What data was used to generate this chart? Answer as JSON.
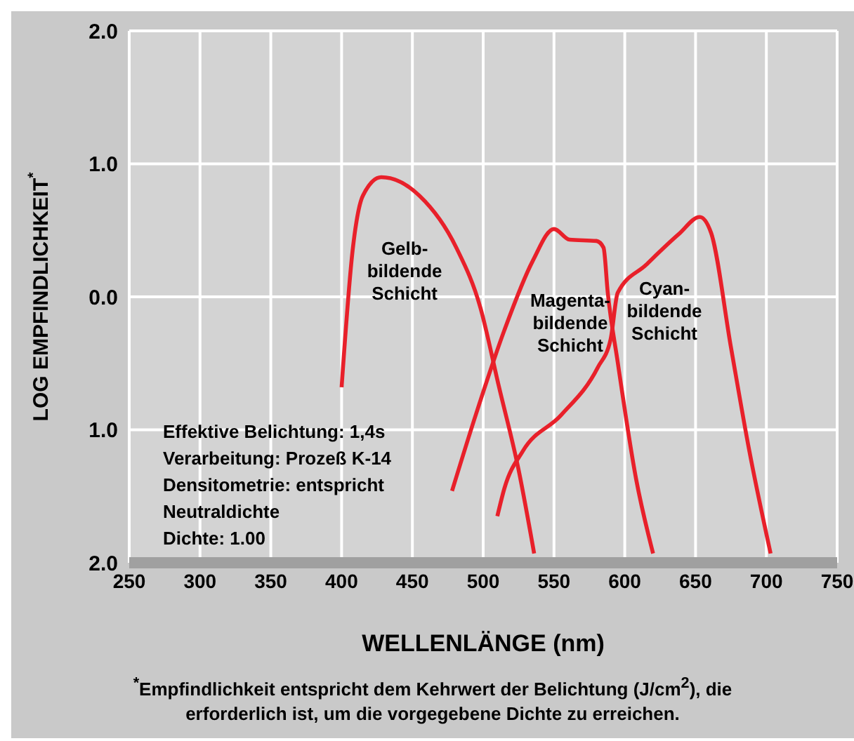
{
  "chart_data": {
    "type": "line",
    "xlabel": "WELLENLÄNGE (nm)",
    "ylabel": "LOG EMPFINDLICHKEIT$^{*}$",
    "xlim": [
      250,
      750
    ],
    "xticks": [
      250,
      300,
      350,
      400,
      450,
      500,
      550,
      600,
      650,
      700,
      750
    ],
    "ylim": [
      -2,
      2
    ],
    "yticks": [
      {
        "value": 2,
        "label": "2.0"
      },
      {
        "value": 1,
        "label": "1.0"
      },
      {
        "value": 0,
        "label": "0.0"
      },
      {
        "value": -1,
        "label": "1.0"
      },
      {
        "value": -2,
        "label": "2.0"
      }
    ],
    "grid": true,
    "marker": "none",
    "line_style": "solid",
    "series": [
      {
        "name": "Gelb- bildende Schicht",
        "color": "#e8202a",
        "x": [
          400,
          408,
          415,
          428,
          455,
          481,
          498,
          511,
          525,
          536
        ],
        "values": [
          -0.68,
          0.37,
          0.76,
          0.9,
          0.76,
          0.37,
          -0.08,
          -0.67,
          -1.3,
          -1.93
        ]
      },
      {
        "name": "Magenta- bildende Schicht",
        "color": "#e8202a",
        "x": [
          478,
          495,
          515,
          535,
          550,
          561,
          580,
          585,
          588,
          595,
          608,
          620
        ],
        "values": [
          -1.46,
          -0.88,
          -0.25,
          0.27,
          0.51,
          0.43,
          0.42,
          0.37,
          0.03,
          -0.49,
          -1.37,
          -1.93
        ]
      },
      {
        "name": "Cyan- bildende Schicht",
        "color": "#e8202a",
        "x": [
          510,
          515,
          528,
          555,
          581,
          590,
          595,
          615,
          638,
          653,
          661,
          675,
          688,
          703
        ],
        "values": [
          -1.65,
          -1.44,
          -1.16,
          -0.89,
          -0.53,
          -0.32,
          0.03,
          0.24,
          0.47,
          0.6,
          0.48,
          -0.38,
          -1.16,
          -1.93
        ]
      }
    ],
    "annotations": [
      "Effektive Belichtung: 1,4s",
      "Verarbeitung: Prozeß K-14",
      "Densitometrie: entspricht Neutraldichte",
      "Dichte: 1.00",
      "$^{*}$Empfindlichkeit entspricht dem Kehrwert der Belichtung (J/cm$^{2}$), die erforderlich ist, um die vorgegebene Dichte zu erreichen."
    ]
  }
}
